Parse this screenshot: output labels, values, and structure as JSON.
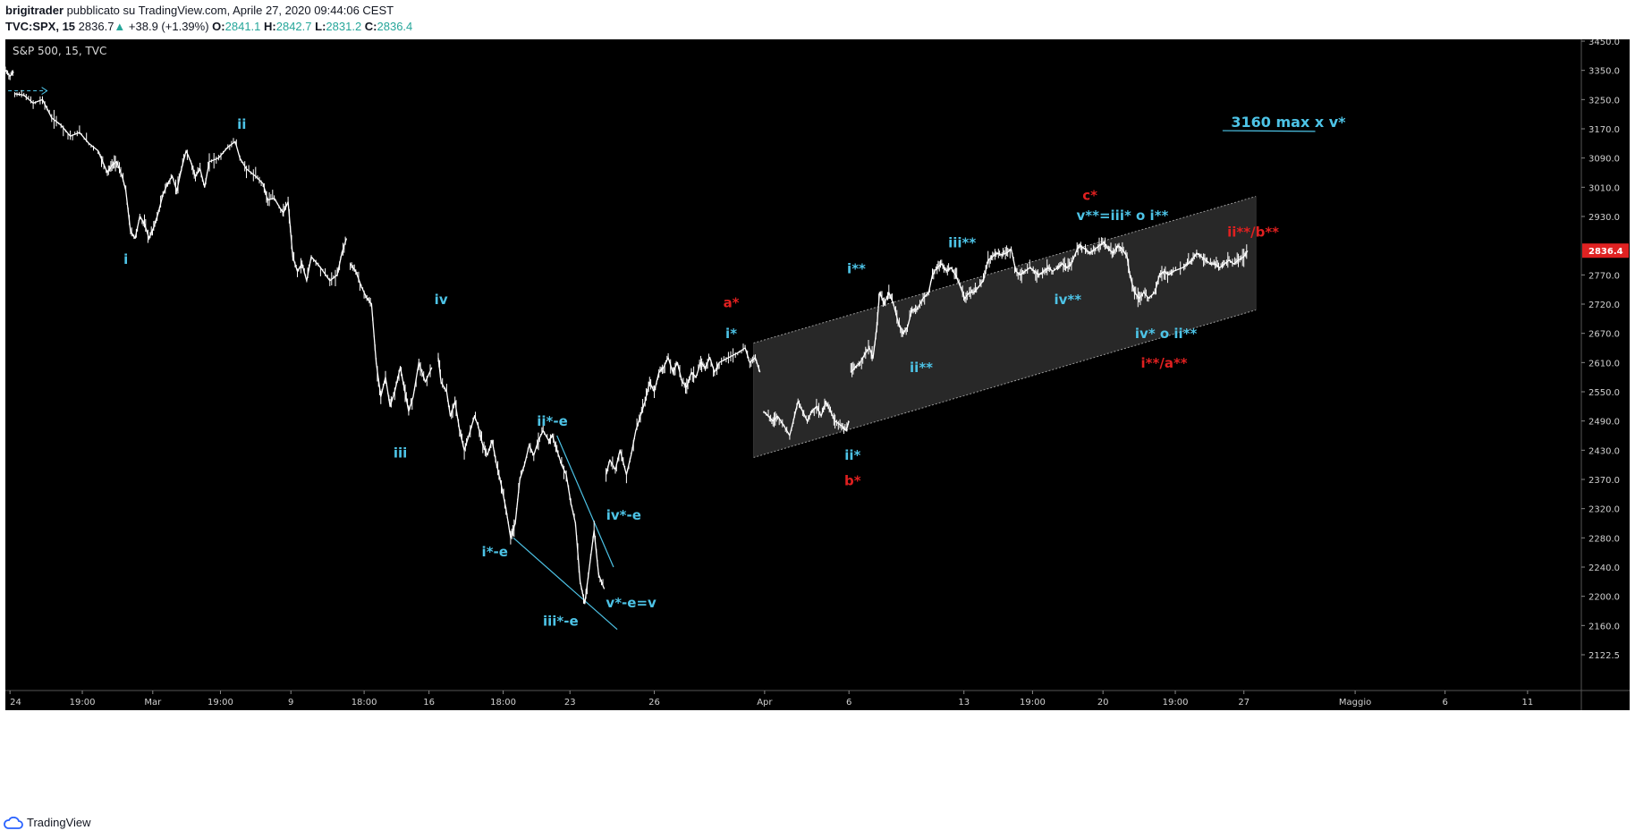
{
  "header": {
    "author": "brigitrader",
    "published": "pubblicato su TradingView.com, Aprile 27, 2020 09:44:06 CEST",
    "symbol": "TVC:SPX, 15",
    "last": "2836.7",
    "change": "+38.9 (+1.39%)",
    "o_label": "O:",
    "o_val": "2841.1",
    "h_label": "H:",
    "h_val": "2842.7",
    "l_label": "L:",
    "l_val": "2831.2",
    "c_label": "C:",
    "c_val": "2836.4"
  },
  "chart_title": "S&P 500, 15, TVC",
  "footer": {
    "brand": "TradingView"
  },
  "colors": {
    "background": "#000000",
    "candles": "#ffffff",
    "wave_cyan": "#4dc3e6",
    "wave_red": "#e02020",
    "channel_fill": "#2a2a2a",
    "price_tag": "#e02222"
  },
  "chart_data": {
    "type": "line",
    "y_axis": {
      "ylim": [
        2100,
        3470
      ],
      "ticks": [
        "3450.0",
        "3350.0",
        "3250.0",
        "3170.0",
        "3090.0",
        "3010.0",
        "2930.0",
        "2850.0",
        "2770.0",
        "2720.0",
        "2670.0",
        "2610.0",
        "2550.0",
        "2490.0",
        "2430.0",
        "2370.0",
        "2320.0",
        "2280.0",
        "2240.0",
        "2200.0",
        "2160.0",
        "2122.5"
      ],
      "hidden_ticks": [
        "2850.0"
      ],
      "last_price_tag": "2836.4"
    },
    "x_axis": {
      "labels": [
        {
          "t": "24",
          "x": 0.5
        },
        {
          "t": "19:00",
          "x": 8.3
        },
        {
          "t": "Mar",
          "x": 15.9
        },
        {
          "t": "19:00",
          "x": 23.2
        },
        {
          "t": "9",
          "x": 30.8
        },
        {
          "t": "18:00",
          "x": 38.7
        },
        {
          "t": "16",
          "x": 45.7
        },
        {
          "t": "18:00",
          "x": 53.7
        },
        {
          "t": "23",
          "x": 60.9
        },
        {
          "t": "26",
          "x": 70.0
        },
        {
          "t": "Apr",
          "x": 81.9
        },
        {
          "t": "6",
          "x": 91.0
        },
        {
          "t": "13",
          "x": 103.4
        },
        {
          "t": "19:00",
          "x": 110.8
        },
        {
          "t": "20",
          "x": 118.4
        },
        {
          "t": "19:00",
          "x": 126.2
        },
        {
          "t": "27",
          "x": 133.6
        },
        {
          "t": "Maggio",
          "x": 145.6
        },
        {
          "t": "6",
          "x": 155.3
        },
        {
          "t": "11",
          "x": 164.2
        }
      ],
      "xlim": [
        0,
        170
      ]
    },
    "price_path": [
      [
        0,
        3350
      ],
      [
        0.5,
        3330
      ],
      [
        0.9,
        3345
      ],
      [
        1.0,
        3270
      ],
      [
        2,
        3265
      ],
      [
        3,
        3240
      ],
      [
        4,
        3250
      ],
      [
        5,
        3200
      ],
      [
        6,
        3180
      ],
      [
        7,
        3150
      ],
      [
        8,
        3160
      ],
      [
        9,
        3130
      ],
      [
        10,
        3110
      ],
      [
        10.5,
        3080
      ],
      [
        11,
        3050
      ],
      [
        11.5,
        3070
      ],
      [
        12,
        3080
      ],
      [
        12.6,
        3040
      ],
      [
        13,
        3000
      ],
      [
        13.5,
        2890
      ],
      [
        14,
        2870
      ],
      [
        14.5,
        2930
      ],
      [
        15,
        2910
      ],
      [
        15.5,
        2870
      ],
      [
        16,
        2900
      ],
      [
        16.5,
        2940
      ],
      [
        17,
        2990
      ],
      [
        17.5,
        3020
      ],
      [
        18,
        3040
      ],
      [
        18.5,
        3000
      ],
      [
        19,
        3060
      ],
      [
        19.5,
        3110
      ],
      [
        20,
        3080
      ],
      [
        20.5,
        3040
      ],
      [
        21,
        3060
      ],
      [
        21.5,
        3010
      ],
      [
        22,
        3080
      ],
      [
        23,
        3090
      ],
      [
        24,
        3120
      ],
      [
        24.8,
        3135
      ],
      [
        25.3,
        3090
      ],
      [
        26,
        3060
      ],
      [
        27,
        3040
      ],
      [
        27.8,
        3020
      ],
      [
        28.3,
        2975
      ],
      [
        29,
        2980
      ],
      [
        29.7,
        2950
      ],
      [
        30,
        2940
      ],
      [
        30.5,
        2970
      ],
      [
        31,
        2820
      ],
      [
        31.5,
        2780
      ],
      [
        32,
        2800
      ],
      [
        32.5,
        2760
      ],
      [
        33,
        2820
      ],
      [
        34,
        2790
      ],
      [
        35,
        2760
      ],
      [
        35.8,
        2770
      ],
      [
        36.3,
        2830
      ],
      [
        36.8,
        2870
      ],
      [
        37.2,
        2800
      ],
      [
        37.8,
        2780
      ],
      [
        38.4,
        2750
      ],
      [
        39,
        2730
      ],
      [
        39.5,
        2720
      ],
      [
        40,
        2610
      ],
      [
        40.5,
        2540
      ],
      [
        41,
        2580
      ],
      [
        41.5,
        2520
      ],
      [
        42,
        2550
      ],
      [
        42.6,
        2600
      ],
      [
        43,
        2560
      ],
      [
        43.5,
        2510
      ],
      [
        44,
        2540
      ],
      [
        44.6,
        2610
      ],
      [
        45.3,
        2570
      ],
      [
        46,
        2600
      ],
      [
        46.4,
        2700
      ],
      [
        46.7,
        2620
      ],
      [
        47,
        2570
      ],
      [
        47.6,
        2550
      ],
      [
        48,
        2500
      ],
      [
        48.5,
        2530
      ],
      [
        49,
        2470
      ],
      [
        49.5,
        2430
      ],
      [
        50,
        2460
      ],
      [
        50.6,
        2500
      ],
      [
        51,
        2480
      ],
      [
        51.5,
        2440
      ],
      [
        52,
        2420
      ],
      [
        52.5,
        2450
      ],
      [
        53,
        2400
      ],
      [
        53.5,
        2360
      ],
      [
        54,
        2320
      ],
      [
        54.5,
        2280
      ],
      [
        55,
        2300
      ],
      [
        55.5,
        2370
      ],
      [
        56,
        2400
      ],
      [
        56.5,
        2440
      ],
      [
        57,
        2420
      ],
      [
        57.5,
        2450
      ],
      [
        58,
        2470
      ],
      [
        58.6,
        2450
      ],
      [
        59,
        2460
      ],
      [
        59.5,
        2430
      ],
      [
        60,
        2400
      ],
      [
        60.5,
        2380
      ],
      [
        61,
        2330
      ],
      [
        61.5,
        2300
      ],
      [
        62,
        2220
      ],
      [
        62.5,
        2190
      ],
      [
        63,
        2240
      ],
      [
        63.5,
        2290
      ],
      [
        64,
        2230
      ],
      [
        64.6,
        2210
      ],
      [
        64.8,
        2380
      ],
      [
        65.2,
        2410
      ],
      [
        65.8,
        2390
      ],
      [
        66.3,
        2430
      ],
      [
        67,
        2380
      ],
      [
        67.5,
        2420
      ],
      [
        68,
        2470
      ],
      [
        68.5,
        2500
      ],
      [
        69,
        2530
      ],
      [
        69.5,
        2570
      ],
      [
        70,
        2550
      ],
      [
        70.5,
        2590
      ],
      [
        71,
        2600
      ],
      [
        71.5,
        2620
      ],
      [
        72,
        2590
      ],
      [
        72.5,
        2610
      ],
      [
        73,
        2570
      ],
      [
        73.5,
        2560
      ],
      [
        74,
        2590
      ],
      [
        74.5,
        2580
      ],
      [
        75,
        2610
      ],
      [
        75.5,
        2600
      ],
      [
        76,
        2620
      ],
      [
        76.5,
        2590
      ],
      [
        77,
        2610
      ],
      [
        78,
        2620
      ],
      [
        79,
        2630
      ],
      [
        79.8,
        2640
      ],
      [
        80.3,
        2610
      ],
      [
        80.9,
        2620
      ],
      [
        81.4,
        2590
      ],
      [
        81.8,
        2510
      ],
      [
        82.3,
        2500
      ],
      [
        82.8,
        2490
      ],
      [
        83.3,
        2500
      ],
      [
        84,
        2480
      ],
      [
        84.6,
        2460
      ],
      [
        85,
        2490
      ],
      [
        85.5,
        2530
      ],
      [
        86,
        2510
      ],
      [
        86.5,
        2490
      ],
      [
        87,
        2510
      ],
      [
        87.5,
        2520
      ],
      [
        88,
        2500
      ],
      [
        88.5,
        2530
      ],
      [
        89,
        2510
      ],
      [
        89.5,
        2490
      ],
      [
        90.2,
        2480
      ],
      [
        90.7,
        2470
      ],
      [
        91,
        2490
      ],
      [
        91.2,
        2590
      ],
      [
        91.7,
        2600
      ],
      [
        92.2,
        2610
      ],
      [
        92.8,
        2630
      ],
      [
        93.2,
        2640
      ],
      [
        93.6,
        2620
      ],
      [
        94,
        2680
      ],
      [
        94.3,
        2740
      ],
      [
        94.8,
        2720
      ],
      [
        95.3,
        2740
      ],
      [
        95.8,
        2720
      ],
      [
        96.3,
        2690
      ],
      [
        96.8,
        2670
      ],
      [
        97.3,
        2680
      ],
      [
        97.8,
        2710
      ],
      [
        98.3,
        2710
      ],
      [
        99,
        2730
      ],
      [
        99.6,
        2740
      ],
      [
        100,
        2770
      ],
      [
        100.5,
        2790
      ],
      [
        101,
        2800
      ],
      [
        101.5,
        2780
      ],
      [
        102,
        2790
      ],
      [
        102.5,
        2770
      ],
      [
        103,
        2750
      ],
      [
        103.5,
        2730
      ],
      [
        104,
        2740
      ],
      [
        104.5,
        2740
      ],
      [
        105,
        2750
      ],
      [
        105.5,
        2760
      ],
      [
        106,
        2810
      ],
      [
        106.5,
        2820
      ],
      [
        107,
        2830
      ],
      [
        107.5,
        2825
      ],
      [
        108,
        2830
      ],
      [
        108.5,
        2840
      ],
      [
        109,
        2780
      ],
      [
        109.5,
        2770
      ],
      [
        110,
        2780
      ],
      [
        110.5,
        2790
      ],
      [
        111,
        2780
      ],
      [
        111.5,
        2770
      ],
      [
        112,
        2780
      ],
      [
        112.5,
        2790
      ],
      [
        113,
        2780
      ],
      [
        113.5,
        2790
      ],
      [
        114,
        2800
      ],
      [
        114.5,
        2790
      ],
      [
        115,
        2800
      ],
      [
        115.6,
        2840
      ],
      [
        116,
        2850
      ],
      [
        116.5,
        2840
      ],
      [
        117,
        2830
      ],
      [
        117.5,
        2840
      ],
      [
        118,
        2850
      ],
      [
        118.5,
        2860
      ],
      [
        119,
        2840
      ],
      [
        119.5,
        2830
      ],
      [
        120,
        2850
      ],
      [
        120.5,
        2840
      ],
      [
        121,
        2820
      ],
      [
        121.3,
        2770
      ],
      [
        121.8,
        2740
      ],
      [
        122.3,
        2730
      ],
      [
        122.8,
        2740
      ],
      [
        123.3,
        2730
      ],
      [
        124,
        2740
      ],
      [
        124.5,
        2770
      ],
      [
        125,
        2780
      ],
      [
        125.5,
        2770
      ],
      [
        126,
        2780
      ],
      [
        127,
        2790
      ],
      [
        127.5,
        2800
      ],
      [
        128,
        2810
      ],
      [
        128.5,
        2830
      ],
      [
        129,
        2820
      ],
      [
        129.5,
        2810
      ],
      [
        130,
        2800
      ],
      [
        130.5,
        2800
      ],
      [
        131,
        2790
      ],
      [
        131.5,
        2800
      ],
      [
        132,
        2810
      ],
      [
        132.5,
        2800
      ],
      [
        133,
        2810
      ],
      [
        133.6,
        2820
      ],
      [
        134,
        2836
      ]
    ],
    "channel": {
      "upper": [
        [
          80.7,
          2650
        ],
        [
          134.9,
          2985
        ]
      ],
      "lower": [
        [
          80.7,
          2415
        ],
        [
          134.9,
          2710
        ]
      ]
    },
    "wedge_lines": [
      [
        [
          54.8,
          2280
        ],
        [
          66,
          2155
        ]
      ],
      [
        [
          59.5,
          2460
        ],
        [
          65.6,
          2240
        ]
      ]
    ],
    "target_line": [
      [
        131.3,
        3165
      ],
      [
        141.3,
        3163
      ]
    ],
    "dashed_start": [
      [
        0.3,
        3280
      ],
      [
        4.4,
        3280
      ]
    ],
    "annotations": [
      {
        "text": "ii",
        "x": 25.5,
        "y": 3170,
        "color": "cyan"
      },
      {
        "text": "i",
        "x": 13.0,
        "y": 2800,
        "color": "cyan"
      },
      {
        "text": "iv",
        "x": 47.0,
        "y": 2720,
        "color": "cyan"
      },
      {
        "text": "iii",
        "x": 42.6,
        "y": 2415,
        "color": "cyan"
      },
      {
        "text": "ii*-e",
        "x": 59.0,
        "y": 2480,
        "color": "cyan"
      },
      {
        "text": "i*-e",
        "x": 52.8,
        "y": 2255,
        "color": "cyan"
      },
      {
        "text": "iii*-e",
        "x": 59.9,
        "y": 2160,
        "color": "cyan"
      },
      {
        "text": "v*-e=v",
        "x": 67.5,
        "y": 2185,
        "color": "cyan"
      },
      {
        "text": "iv*-e",
        "x": 66.7,
        "y": 2305,
        "color": "cyan"
      },
      {
        "text": "a*",
        "x": 78.3,
        "y": 2715,
        "color": "red"
      },
      {
        "text": "i*",
        "x": 78.3,
        "y": 2660,
        "color": "cyan"
      },
      {
        "text": "i**",
        "x": 91.8,
        "y": 2775,
        "color": "cyan"
      },
      {
        "text": "ii**",
        "x": 98.8,
        "y": 2590,
        "color": "cyan"
      },
      {
        "text": "ii*",
        "x": 91.4,
        "y": 2410,
        "color": "cyan"
      },
      {
        "text": "b*",
        "x": 91.4,
        "y": 2360,
        "color": "red"
      },
      {
        "text": "iii**",
        "x": 103.2,
        "y": 2845,
        "color": "cyan"
      },
      {
        "text": "iv**",
        "x": 114.6,
        "y": 2720,
        "color": "cyan"
      },
      {
        "text": "c*",
        "x": 117.0,
        "y": 2975,
        "color": "red"
      },
      {
        "text": "v**=iii* o i**",
        "x": 120.5,
        "y": 2920,
        "color": "cyan"
      },
      {
        "text": "ii**/b**",
        "x": 134.6,
        "y": 2875,
        "color": "red"
      },
      {
        "text": "iv* o ii**",
        "x": 125.2,
        "y": 2660,
        "color": "cyan"
      },
      {
        "text": "i**/a**",
        "x": 125.0,
        "y": 2600,
        "color": "red"
      },
      {
        "text": "3160 max x v*",
        "x": 138.4,
        "y": 3175,
        "color": "cyan",
        "big": true
      }
    ]
  }
}
